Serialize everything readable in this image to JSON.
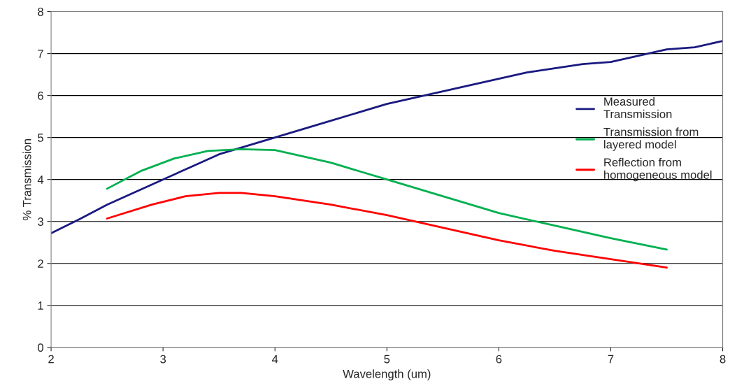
{
  "chart_data": {
    "type": "line",
    "xlabel": "Wavelength (um)",
    "ylabel": "% Transmission",
    "xlim": [
      2,
      8
    ],
    "xticks": [
      2,
      3,
      4,
      5,
      6,
      7,
      8
    ],
    "ylim": [
      0,
      8
    ],
    "yticks": [
      0,
      1,
      2,
      3,
      4,
      5,
      6,
      7,
      8
    ],
    "grid": "y",
    "legend": "right",
    "marker": "none",
    "line_style": "solid",
    "series": [
      {
        "name": "Measured\nTransmission",
        "color": "#1a1a80",
        "x": [
          2,
          2.25,
          2.5,
          2.75,
          3,
          3.25,
          3.5,
          3.75,
          4,
          4.25,
          4.5,
          4.75,
          5,
          5.25,
          5.5,
          5.75,
          6,
          6.25,
          6.5,
          6.75,
          7,
          7.25,
          7.5,
          7.75,
          8
        ],
        "values": [
          2.72,
          3.05,
          3.4,
          3.7,
          4.0,
          4.3,
          4.6,
          4.8,
          5.0,
          5.2,
          5.4,
          5.6,
          5.8,
          5.95,
          6.1,
          6.25,
          6.4,
          6.55,
          6.65,
          6.75,
          6.8,
          6.95,
          7.1,
          7.15,
          7.3
        ]
      },
      {
        "name": "Transmission from\nlayered model",
        "color": "#00b050",
        "x": [
          2.5,
          2.8,
          3.1,
          3.4,
          3.7,
          4.0,
          4.5,
          5.0,
          5.5,
          6.0,
          6.5,
          7.0,
          7.5
        ],
        "values": [
          3.78,
          4.2,
          4.5,
          4.68,
          4.72,
          4.7,
          4.4,
          4.0,
          3.6,
          3.2,
          2.9,
          2.6,
          2.33
        ]
      },
      {
        "name": "Reflection from\nhomogeneous model",
        "color": "#ff0000",
        "x": [
          2.5,
          2.9,
          3.2,
          3.5,
          3.7,
          4.0,
          4.5,
          5.0,
          5.5,
          6.0,
          6.5,
          7.0,
          7.5
        ],
        "values": [
          3.07,
          3.4,
          3.6,
          3.68,
          3.68,
          3.6,
          3.4,
          3.15,
          2.85,
          2.55,
          2.3,
          2.1,
          1.9
        ]
      }
    ]
  }
}
